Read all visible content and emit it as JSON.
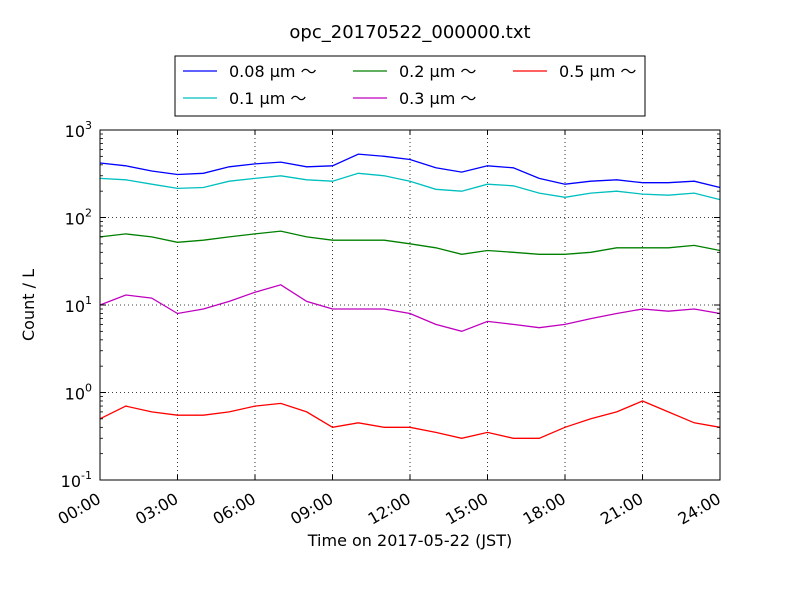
{
  "chart_data": {
    "type": "line",
    "title": "opc_20170522_000000.txt",
    "xlabel": "Time on 2017-05-22 (JST)",
    "ylabel": "Count / L",
    "y_scale": "log",
    "xlim": [
      "00:00",
      "24:00"
    ],
    "ylim": [
      0.1,
      1000
    ],
    "x_ticks": [
      "00:00",
      "03:00",
      "06:00",
      "09:00",
      "12:00",
      "15:00",
      "18:00",
      "21:00",
      "24:00"
    ],
    "y_ticks": [
      {
        "base": "10",
        "exp": "-1"
      },
      {
        "base": "10",
        "exp": "0"
      },
      {
        "base": "10",
        "exp": "1"
      },
      {
        "base": "10",
        "exp": "2"
      },
      {
        "base": "10",
        "exp": "3"
      }
    ],
    "grid": true,
    "legend_position": "top-center",
    "legend_columns": 3,
    "series": [
      {
        "name": "0.08 μm ～",
        "color": "#0000ff",
        "x": [
          "00:00",
          "01:00",
          "02:00",
          "03:00",
          "04:00",
          "05:00",
          "06:00",
          "07:00",
          "08:00",
          "09:00",
          "10:00",
          "11:00",
          "12:00",
          "13:00",
          "14:00",
          "15:00",
          "16:00",
          "17:00",
          "18:00",
          "19:00",
          "20:00",
          "21:00",
          "22:00",
          "23:00",
          "24:00"
        ],
        "values": [
          420,
          390,
          340,
          310,
          320,
          380,
          410,
          430,
          380,
          390,
          530,
          500,
          460,
          370,
          330,
          390,
          370,
          280,
          240,
          260,
          270,
          250,
          250,
          260,
          220
        ]
      },
      {
        "name": "0.1 μm ～",
        "color": "#00bfbf",
        "x": [
          "00:00",
          "01:00",
          "02:00",
          "03:00",
          "04:00",
          "05:00",
          "06:00",
          "07:00",
          "08:00",
          "09:00",
          "10:00",
          "11:00",
          "12:00",
          "13:00",
          "14:00",
          "15:00",
          "16:00",
          "17:00",
          "18:00",
          "19:00",
          "20:00",
          "21:00",
          "22:00",
          "23:00",
          "24:00"
        ],
        "values": [
          280,
          270,
          240,
          215,
          220,
          260,
          280,
          300,
          270,
          260,
          320,
          300,
          260,
          210,
          200,
          240,
          230,
          190,
          170,
          190,
          200,
          185,
          180,
          190,
          160
        ]
      },
      {
        "name": "0.2 μm ～",
        "color": "#008000",
        "x": [
          "00:00",
          "01:00",
          "02:00",
          "03:00",
          "04:00",
          "05:00",
          "06:00",
          "07:00",
          "08:00",
          "09:00",
          "10:00",
          "11:00",
          "12:00",
          "13:00",
          "14:00",
          "15:00",
          "16:00",
          "17:00",
          "18:00",
          "19:00",
          "20:00",
          "21:00",
          "22:00",
          "23:00",
          "24:00"
        ],
        "values": [
          60,
          65,
          60,
          52,
          55,
          60,
          65,
          70,
          60,
          55,
          55,
          55,
          50,
          45,
          38,
          42,
          40,
          38,
          38,
          40,
          45,
          45,
          45,
          48,
          42
        ]
      },
      {
        "name": "0.3 μm ～",
        "color": "#bf00bf",
        "x": [
          "00:00",
          "01:00",
          "02:00",
          "03:00",
          "04:00",
          "05:00",
          "06:00",
          "07:00",
          "08:00",
          "09:00",
          "10:00",
          "11:00",
          "12:00",
          "13:00",
          "14:00",
          "15:00",
          "16:00",
          "17:00",
          "18:00",
          "19:00",
          "20:00",
          "21:00",
          "22:00",
          "23:00",
          "24:00"
        ],
        "values": [
          10,
          13,
          12,
          8,
          9,
          11,
          14,
          17,
          11,
          9,
          9,
          9,
          8,
          6,
          5,
          6.5,
          6,
          5.5,
          6,
          7,
          8,
          9,
          8.5,
          9,
          8
        ]
      },
      {
        "name": "0.5 μm ～",
        "color": "#ff0000",
        "x": [
          "00:00",
          "01:00",
          "02:00",
          "03:00",
          "04:00",
          "05:00",
          "06:00",
          "07:00",
          "08:00",
          "09:00",
          "10:00",
          "11:00",
          "12:00",
          "13:00",
          "14:00",
          "15:00",
          "16:00",
          "17:00",
          "18:00",
          "19:00",
          "20:00",
          "21:00",
          "22:00",
          "23:00",
          "24:00"
        ],
        "values": [
          0.5,
          0.7,
          0.6,
          0.55,
          0.55,
          0.6,
          0.7,
          0.75,
          0.6,
          0.4,
          0.45,
          0.4,
          0.4,
          0.35,
          0.3,
          0.35,
          0.3,
          0.3,
          0.4,
          0.5,
          0.6,
          0.8,
          0.6,
          0.45,
          0.4
        ]
      }
    ]
  }
}
